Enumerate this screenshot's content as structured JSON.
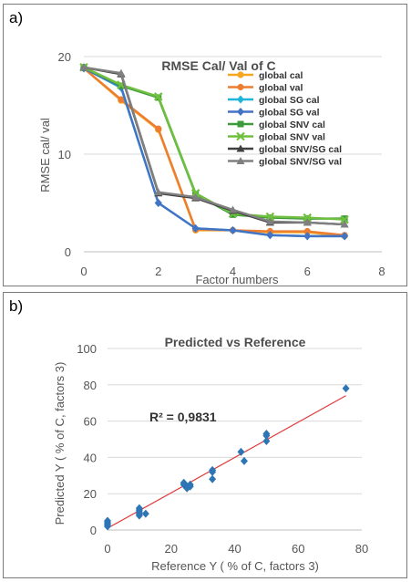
{
  "panels": {
    "a_label": "a)",
    "b_label": "b)"
  },
  "chart_data": [
    {
      "type": "line",
      "title": "RMSE Cal/ Val  of C",
      "xlabel": "Factor numbers",
      "ylabel": "RMSE cal/ val",
      "xlim": [
        0,
        8
      ],
      "ylim": [
        0,
        20
      ],
      "xticks": [
        0,
        2,
        4,
        6,
        8
      ],
      "yticks": [
        0,
        10,
        20
      ],
      "legend_position": "right",
      "x": [
        0,
        1,
        2,
        3,
        4,
        5,
        6,
        7
      ],
      "series": [
        {
          "name": "global cal",
          "color": "#f5a623",
          "marker": "circle",
          "values": [
            18.8,
            15.5,
            12.5,
            2.2,
            2.2,
            2.0,
            2.0,
            1.6
          ]
        },
        {
          "name": "global val",
          "color": "#ed7d31",
          "marker": "circle",
          "values": [
            18.8,
            15.6,
            12.6,
            2.3,
            2.2,
            2.1,
            2.1,
            1.7
          ]
        },
        {
          "name": "global SG cal",
          "color": "#1fb5d9",
          "marker": "diamond",
          "values": [
            18.8,
            16.8,
            5.0,
            2.4,
            2.2,
            1.7,
            1.6,
            1.6
          ]
        },
        {
          "name": "global SG val",
          "color": "#4472c4",
          "marker": "diamond",
          "values": [
            18.8,
            16.9,
            5.0,
            2.4,
            2.2,
            1.7,
            1.6,
            1.6
          ]
        },
        {
          "name": "global SNV cal",
          "color": "#3c9a3c",
          "marker": "square",
          "values": [
            18.9,
            17.0,
            15.8,
            5.9,
            3.8,
            3.5,
            3.4,
            3.4
          ]
        },
        {
          "name": "global SNV val",
          "color": "#70c040",
          "marker": "x",
          "values": [
            18.9,
            17.1,
            15.9,
            6.0,
            3.9,
            3.6,
            3.5,
            3.3
          ]
        },
        {
          "name": "global SNV/SG cal",
          "color": "#404040",
          "marker": "triangle",
          "values": [
            18.9,
            18.2,
            6.0,
            5.5,
            4.2,
            3.0,
            3.0,
            2.8
          ]
        },
        {
          "name": "global SNV/SG val",
          "color": "#808080",
          "marker": "triangle",
          "values": [
            18.9,
            18.3,
            6.1,
            5.6,
            4.3,
            3.1,
            3.0,
            2.8
          ]
        }
      ]
    },
    {
      "type": "scatter",
      "title": "Predicted vs Reference",
      "xlabel": "Reference Y  ( % of C, factors 3)",
      "ylabel": "Predicted Y  ( % of C, factors 3)",
      "xlim": [
        0,
        80
      ],
      "ylim": [
        0,
        100
      ],
      "xticks": [
        0,
        20,
        40,
        60,
        80
      ],
      "yticks": [
        0,
        20,
        40,
        60,
        80,
        100
      ],
      "annotation": "R² = 0,9831",
      "point_color": "#2e75b6",
      "trendline_color": "#e03a3a",
      "trendline": [
        [
          0,
          1
        ],
        [
          75,
          74
        ]
      ],
      "points": [
        [
          0,
          5
        ],
        [
          0,
          4
        ],
        [
          0,
          3
        ],
        [
          0,
          2
        ],
        [
          10,
          12
        ],
        [
          10,
          11
        ],
        [
          10,
          10
        ],
        [
          10,
          9
        ],
        [
          10,
          8
        ],
        [
          12,
          9
        ],
        [
          24,
          26
        ],
        [
          24,
          25
        ],
        [
          25,
          24
        ],
        [
          25,
          23
        ],
        [
          26,
          25
        ],
        [
          26,
          24
        ],
        [
          33,
          33
        ],
        [
          33,
          32
        ],
        [
          33,
          28
        ],
        [
          42,
          43
        ],
        [
          43,
          38
        ],
        [
          50,
          53
        ],
        [
          50,
          52
        ],
        [
          50,
          49
        ],
        [
          75,
          78
        ]
      ]
    }
  ]
}
